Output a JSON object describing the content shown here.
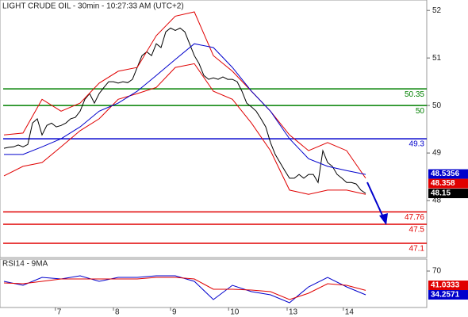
{
  "chart_data": [
    {
      "type": "line",
      "title": "LIGHT CRUDE OIL - 30min - 10:27:33 AM (UTC+2)",
      "xlim": [
        -0.83,
        88.83
      ],
      "ylim": [
        46.8,
        52.22
      ],
      "yticks": [
        52,
        51,
        50,
        49,
        48
      ],
      "series": [
        {
          "color": "#000000",
          "x": [
            0,
            1,
            2,
            3,
            4,
            5,
            6,
            7,
            8,
            9,
            10,
            11,
            12,
            13,
            14,
            15,
            16,
            17,
            18,
            19,
            20,
            21,
            22,
            23,
            24,
            25,
            26,
            27,
            28,
            29,
            30,
            31,
            32,
            33,
            34,
            35,
            36,
            37,
            38,
            39,
            40,
            41,
            42,
            43,
            44,
            45,
            46,
            47,
            48,
            49,
            50,
            51,
            52,
            53,
            54,
            55,
            56,
            57,
            58,
            59,
            60,
            61,
            62,
            63,
            64,
            65,
            66,
            67,
            68,
            69,
            70,
            71,
            72,
            73,
            74,
            75,
            76
          ],
          "values": [
            49.1,
            49.12,
            49.13,
            49.17,
            49.13,
            49.18,
            49.63,
            49.72,
            49.38,
            49.58,
            49.63,
            49.55,
            49.58,
            49.63,
            49.72,
            49.75,
            49.88,
            50.13,
            50.25,
            50.05,
            50.25,
            50.38,
            50.5,
            50.5,
            50.47,
            50.5,
            50.48,
            50.55,
            50.8,
            51.05,
            51.13,
            51.05,
            51.3,
            51.22,
            51.55,
            51.63,
            51.58,
            51.63,
            51.55,
            51.3,
            51.05,
            50.88,
            50.63,
            50.55,
            50.58,
            50.55,
            50.6,
            50.55,
            50.55,
            50.5,
            50.3,
            50.05,
            49.97,
            49.88,
            49.72,
            49.55,
            49.22,
            48.97,
            48.8,
            48.63,
            48.47,
            48.47,
            48.55,
            48.47,
            48.55,
            48.55,
            48.38,
            49.05,
            48.8,
            48.72,
            48.55,
            48.47,
            48.38,
            48.38,
            48.35,
            48.22,
            48.15
          ]
        },
        {
          "color": "#e00000",
          "x": [
            0,
            4,
            8,
            12,
            16,
            20,
            24,
            28,
            32,
            36,
            40,
            44,
            48,
            52,
            56,
            60,
            64,
            68,
            72,
            76
          ],
          "values": [
            49.38,
            49.42,
            50.13,
            49.88,
            50.05,
            50.47,
            50.72,
            50.8,
            51.47,
            51.88,
            51.97,
            51.05,
            50.72,
            50.3,
            49.88,
            49.38,
            49.05,
            49.22,
            49.05,
            48.47
          ]
        },
        {
          "color": "#e00000",
          "x": [
            0,
            4,
            8,
            12,
            16,
            20,
            24,
            28,
            32,
            36,
            40,
            44,
            48,
            52,
            56,
            60,
            64,
            68,
            72,
            76
          ],
          "values": [
            48.52,
            48.72,
            48.8,
            49.13,
            49.47,
            49.72,
            50.13,
            50.25,
            50.38,
            50.8,
            50.88,
            50.3,
            50.13,
            49.63,
            49.05,
            48.22,
            48.13,
            48.22,
            48.22,
            48.13
          ]
        },
        {
          "color": "#0000cc",
          "x": [
            0,
            4,
            8,
            12,
            16,
            20,
            24,
            28,
            32,
            36,
            40,
            44,
            48,
            52,
            56,
            60,
            64,
            68,
            72,
            76
          ],
          "values": [
            48.97,
            48.97,
            49.13,
            49.3,
            49.55,
            49.88,
            50.05,
            50.3,
            50.63,
            50.97,
            51.3,
            51.22,
            50.8,
            50.3,
            49.88,
            49.3,
            48.88,
            48.72,
            48.63,
            48.55
          ]
        }
      ],
      "levels": [
        {
          "value": 50.35,
          "color": "#008000"
        },
        {
          "value": 50,
          "color": "#008000"
        },
        {
          "value": 49.3,
          "color": "#0000cc"
        },
        {
          "value": 47.76,
          "color": "#e00000"
        },
        {
          "value": 47.5,
          "color": "#e00000"
        },
        {
          "value": 47.1,
          "color": "#e00000"
        }
      ],
      "markers": [
        {
          "value": 48.5356,
          "color": "#0000cc"
        },
        {
          "value": 48.358,
          "color": "#e00000"
        },
        {
          "value": 48.15,
          "color": "#000000"
        }
      ]
    },
    {
      "type": "line",
      "title": "RSI14 - 9MA",
      "xlim": [
        -0.83,
        88.83
      ],
      "ylim": [
        15.2,
        87.9
      ],
      "yticks": [
        70
      ],
      "xticks": [
        {
          "value": 10.8,
          "label": "7"
        },
        {
          "value": 23,
          "label": "8"
        },
        {
          "value": 35,
          "label": "9"
        },
        {
          "value": 47.2,
          "label": "10"
        },
        {
          "value": 59.5,
          "label": "13"
        },
        {
          "value": 71.3,
          "label": "14"
        }
      ],
      "series": [
        {
          "color": "#0000cc",
          "x": [
            0,
            4,
            8,
            12,
            16,
            20,
            24,
            28,
            32,
            36,
            40,
            44,
            48,
            52,
            56,
            60,
            64,
            68,
            72,
            76
          ],
          "values": [
            54.5,
            48.6,
            60.5,
            58.1,
            62.9,
            54.5,
            60.5,
            60.5,
            62.9,
            62.9,
            54.5,
            27.1,
            48.6,
            39.0,
            34.3,
            22.4,
            46.2,
            60.5,
            46.2,
            34.3
          ]
        },
        {
          "color": "#e00000",
          "x": [
            0,
            4,
            8,
            12,
            16,
            20,
            24,
            28,
            32,
            36,
            40,
            44,
            48,
            52,
            56,
            60,
            64,
            68,
            72,
            76
          ],
          "values": [
            52.1,
            51.0,
            54.5,
            58.1,
            58.1,
            58.1,
            58.1,
            58.1,
            60.5,
            60.5,
            58.1,
            42.6,
            42.6,
            41.4,
            39.0,
            27.1,
            36.7,
            51.0,
            48.6,
            41.0
          ]
        }
      ],
      "markers": [
        {
          "value": 41.0333,
          "color": "#e00000"
        },
        {
          "value": 34.2571,
          "color": "#0000cc"
        }
      ]
    }
  ]
}
